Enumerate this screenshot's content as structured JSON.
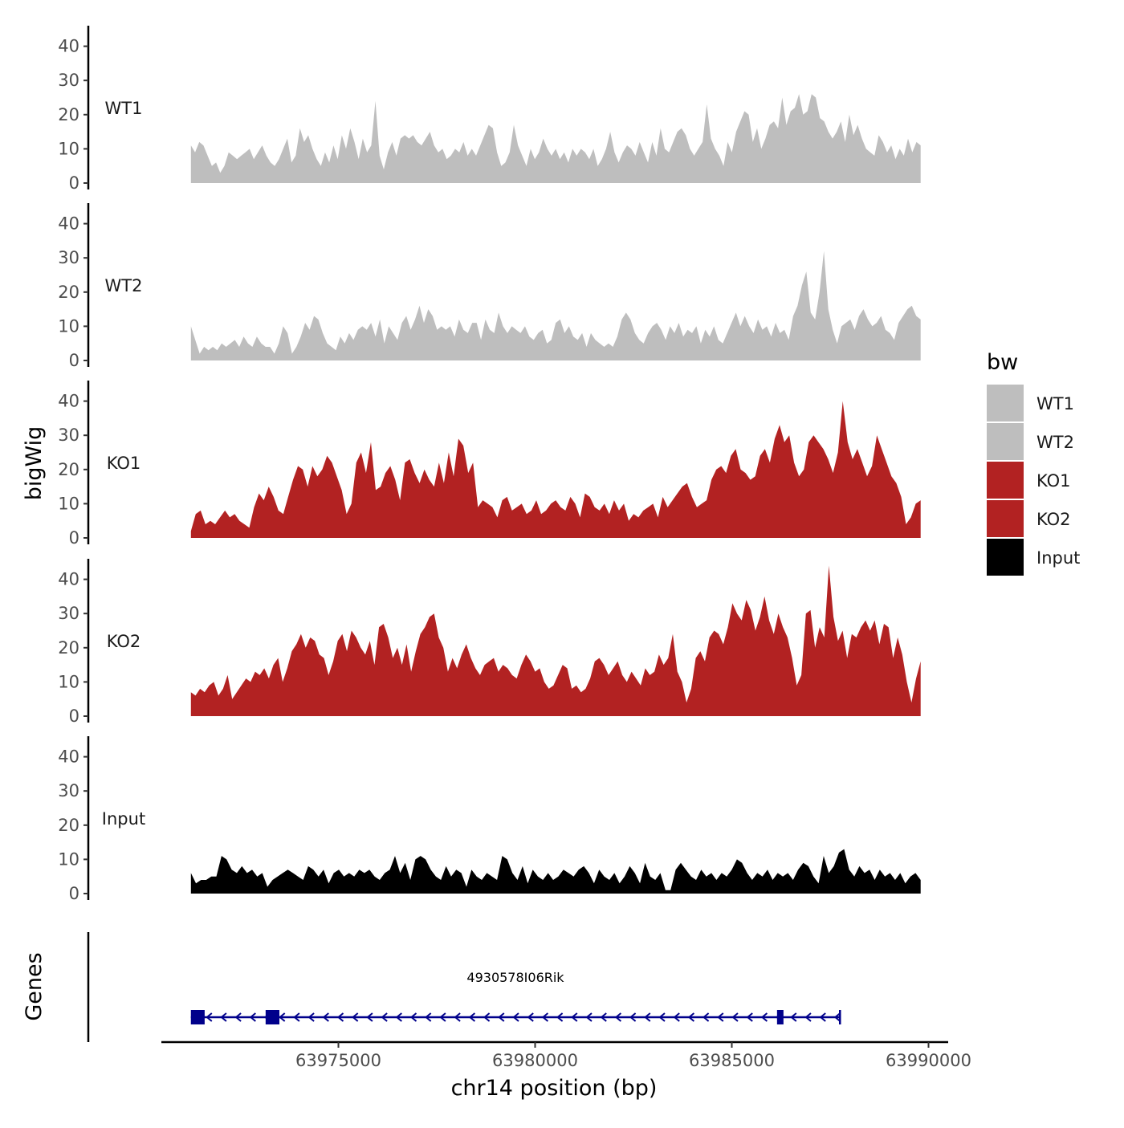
{
  "chart_data": {
    "type": "area",
    "title": "",
    "xlabel": "chr14 position (bp)",
    "ylabel": "bigWig",
    "genes_label": "Genes",
    "xlim": [
      63970500,
      63990500
    ],
    "x_ticks": [
      63975000,
      63980000,
      63985000,
      63990000
    ],
    "x_tick_labels": [
      "63975000",
      "63980000",
      "63985000",
      "63990000"
    ],
    "ylim": [
      0,
      45
    ],
    "y_ticks": [
      0,
      10,
      20,
      30,
      40
    ],
    "y_tick_labels": [
      "0",
      "10",
      "20",
      "30",
      "40"
    ],
    "x_start": 63971250,
    "x_end": 63989800,
    "step_bp": 100,
    "grid": false,
    "legend": {
      "title": "bw",
      "position": "right",
      "entries": [
        {
          "label": "WT1",
          "color": "#bebebe"
        },
        {
          "label": "WT2",
          "color": "#bebebe"
        },
        {
          "label": "KO1",
          "color": "#b22222"
        },
        {
          "label": "KO2",
          "color": "#b22222"
        },
        {
          "label": "Input",
          "color": "#000000"
        }
      ]
    },
    "series": [
      {
        "name": "WT1",
        "color": "#bebebe",
        "values": [
          11,
          9,
          12,
          11,
          8,
          5,
          6,
          3,
          5,
          9,
          8,
          7,
          8,
          9,
          10,
          7,
          9,
          11,
          8,
          6,
          5,
          7,
          10,
          13,
          6,
          8,
          16,
          12,
          14,
          10,
          7,
          5,
          9,
          6,
          11,
          7,
          14,
          10,
          16,
          12,
          7,
          13,
          9,
          11,
          24,
          8,
          4,
          9,
          12,
          8,
          13,
          14,
          13,
          14,
          12,
          11,
          13,
          15,
          11,
          9,
          10,
          7,
          8,
          10,
          9,
          12,
          8,
          10,
          8,
          11,
          14,
          17,
          16,
          9,
          5,
          6,
          9,
          17,
          11,
          8,
          5,
          10,
          7,
          9,
          13,
          10,
          8,
          10,
          7,
          9,
          6,
          10,
          8,
          10,
          9,
          7,
          10,
          5,
          7,
          10,
          15,
          9,
          6,
          9,
          11,
          10,
          8,
          12,
          9,
          6,
          12,
          8,
          16,
          10,
          9,
          12,
          15,
          16,
          14,
          10,
          8,
          10,
          12,
          23,
          13,
          10,
          8,
          5,
          12,
          9,
          15,
          18,
          21,
          20,
          12,
          16,
          10,
          13,
          17,
          18,
          16,
          25,
          17,
          21,
          22,
          26,
          20,
          21,
          26,
          25,
          19,
          18,
          15,
          13,
          15,
          18,
          12,
          20,
          14,
          17,
          13,
          10,
          9,
          8,
          14,
          12,
          9,
          11,
          7,
          10,
          8,
          13,
          9,
          12,
          11
        ]
      },
      {
        "name": "WT2",
        "color": "#bebebe",
        "values": [
          10,
          6,
          2,
          4,
          3,
          4,
          3,
          5,
          4,
          5,
          6,
          4,
          7,
          5,
          4,
          7,
          5,
          4,
          4,
          2,
          5,
          10,
          8,
          2,
          4,
          7,
          11,
          9,
          13,
          12,
          8,
          5,
          4,
          3,
          7,
          5,
          8,
          6,
          9,
          10,
          9,
          11,
          7,
          12,
          5,
          10,
          8,
          6,
          11,
          13,
          9,
          12,
          16,
          11,
          15,
          13,
          9,
          10,
          9,
          10,
          7,
          12,
          9,
          8,
          11,
          11,
          6,
          12,
          9,
          8,
          14,
          10,
          8,
          10,
          9,
          8,
          10,
          7,
          6,
          8,
          9,
          5,
          6,
          11,
          12,
          8,
          10,
          7,
          6,
          8,
          4,
          8,
          6,
          5,
          4,
          5,
          4,
          7,
          12,
          14,
          12,
          8,
          6,
          5,
          8,
          10,
          11,
          9,
          6,
          10,
          8,
          11,
          7,
          9,
          8,
          10,
          5,
          9,
          7,
          10,
          6,
          5,
          8,
          11,
          14,
          10,
          13,
          10,
          8,
          12,
          9,
          10,
          7,
          11,
          8,
          9,
          6,
          13,
          16,
          22,
          26,
          14,
          12,
          20,
          32,
          15,
          9,
          5,
          10,
          11,
          12,
          9,
          13,
          15,
          12,
          10,
          11,
          13,
          9,
          8,
          6,
          11,
          13,
          15,
          16,
          13,
          12
        ]
      },
      {
        "name": "KO1",
        "color": "#b22222",
        "values": [
          2,
          7,
          8,
          4,
          5,
          4,
          6,
          8,
          6,
          7,
          5,
          4,
          3,
          9,
          13,
          11,
          15,
          12,
          8,
          7,
          12,
          17,
          21,
          20,
          15,
          21,
          18,
          20,
          24,
          22,
          18,
          14,
          7,
          10,
          22,
          25,
          19,
          28,
          14,
          15,
          19,
          21,
          17,
          11,
          22,
          23,
          19,
          16,
          20,
          17,
          15,
          22,
          16,
          25,
          18,
          29,
          27,
          19,
          22,
          9,
          11,
          10,
          9,
          6,
          11,
          12,
          8,
          9,
          10,
          7,
          8,
          11,
          7,
          8,
          10,
          11,
          9,
          8,
          12,
          10,
          6,
          13,
          12,
          9,
          8,
          10,
          7,
          11,
          8,
          10,
          5,
          7,
          6,
          8,
          9,
          10,
          6,
          12,
          9,
          11,
          13,
          15,
          16,
          12,
          9,
          10,
          11,
          17,
          20,
          21,
          19,
          24,
          26,
          20,
          19,
          17,
          18,
          24,
          26,
          22,
          29,
          33,
          28,
          30,
          22,
          18,
          20,
          28,
          30,
          28,
          26,
          23,
          19,
          25,
          40,
          28,
          23,
          26,
          22,
          18,
          21,
          30,
          26,
          22,
          18,
          16,
          12,
          4,
          6,
          10,
          11
        ]
      },
      {
        "name": "KO2",
        "color": "#b22222",
        "values": [
          7,
          6,
          8,
          7,
          9,
          10,
          6,
          8,
          12,
          5,
          7,
          9,
          11,
          10,
          13,
          12,
          14,
          11,
          15,
          17,
          10,
          14,
          19,
          21,
          24,
          20,
          23,
          22,
          18,
          17,
          12,
          16,
          22,
          24,
          19,
          25,
          23,
          20,
          18,
          22,
          15,
          26,
          27,
          23,
          17,
          20,
          15,
          21,
          13,
          19,
          24,
          26,
          29,
          30,
          23,
          20,
          13,
          17,
          14,
          18,
          21,
          17,
          14,
          12,
          15,
          16,
          17,
          13,
          15,
          14,
          12,
          11,
          15,
          18,
          16,
          13,
          14,
          10,
          8,
          9,
          12,
          15,
          14,
          8,
          9,
          7,
          8,
          11,
          16,
          17,
          15,
          12,
          14,
          16,
          12,
          10,
          13,
          11,
          9,
          14,
          12,
          13,
          18,
          15,
          17,
          24,
          13,
          10,
          4,
          8,
          17,
          19,
          16,
          23,
          25,
          24,
          21,
          26,
          33,
          30,
          28,
          34,
          31,
          25,
          29,
          35,
          28,
          24,
          30,
          26,
          23,
          17,
          9,
          12,
          30,
          31,
          20,
          26,
          23,
          44,
          29,
          22,
          25,
          17,
          24,
          23,
          26,
          28,
          25,
          28,
          21,
          27,
          26,
          17,
          23,
          18,
          10,
          4,
          11,
          16
        ]
      },
      {
        "name": "Input",
        "color": "#000000",
        "values": [
          6,
          3,
          4,
          4,
          5,
          5,
          11,
          10,
          7,
          6,
          8,
          6,
          7,
          5,
          6,
          2,
          4,
          5,
          6,
          7,
          6,
          5,
          4,
          8,
          7,
          5,
          7,
          3,
          6,
          7,
          5,
          6,
          5,
          7,
          6,
          7,
          5,
          4,
          6,
          7,
          11,
          6,
          9,
          4,
          10,
          11,
          10,
          7,
          5,
          4,
          8,
          5,
          7,
          6,
          2,
          7,
          5,
          4,
          6,
          5,
          4,
          11,
          10,
          6,
          4,
          8,
          3,
          7,
          5,
          4,
          6,
          4,
          5,
          7,
          6,
          5,
          7,
          8,
          6,
          3,
          7,
          5,
          4,
          6,
          3,
          5,
          8,
          6,
          3,
          9,
          5,
          4,
          6,
          1,
          1,
          7,
          9,
          7,
          5,
          4,
          7,
          5,
          6,
          4,
          6,
          5,
          7,
          10,
          9,
          6,
          4,
          6,
          5,
          7,
          4,
          6,
          5,
          6,
          4,
          7,
          9,
          8,
          5,
          3,
          11,
          6,
          8,
          12,
          13,
          7,
          5,
          8,
          6,
          7,
          4,
          7,
          5,
          6,
          4,
          6,
          3,
          5,
          6,
          4
        ]
      }
    ],
    "gene_track": {
      "gene_name": "4930578I06Rik",
      "strand": "-",
      "start": 63971250,
      "end": 63987750,
      "exons": [
        [
          63971250,
          63971600
        ],
        [
          63973150,
          63973500
        ],
        [
          63986150,
          63986300
        ]
      ],
      "color": "#00008b"
    }
  }
}
